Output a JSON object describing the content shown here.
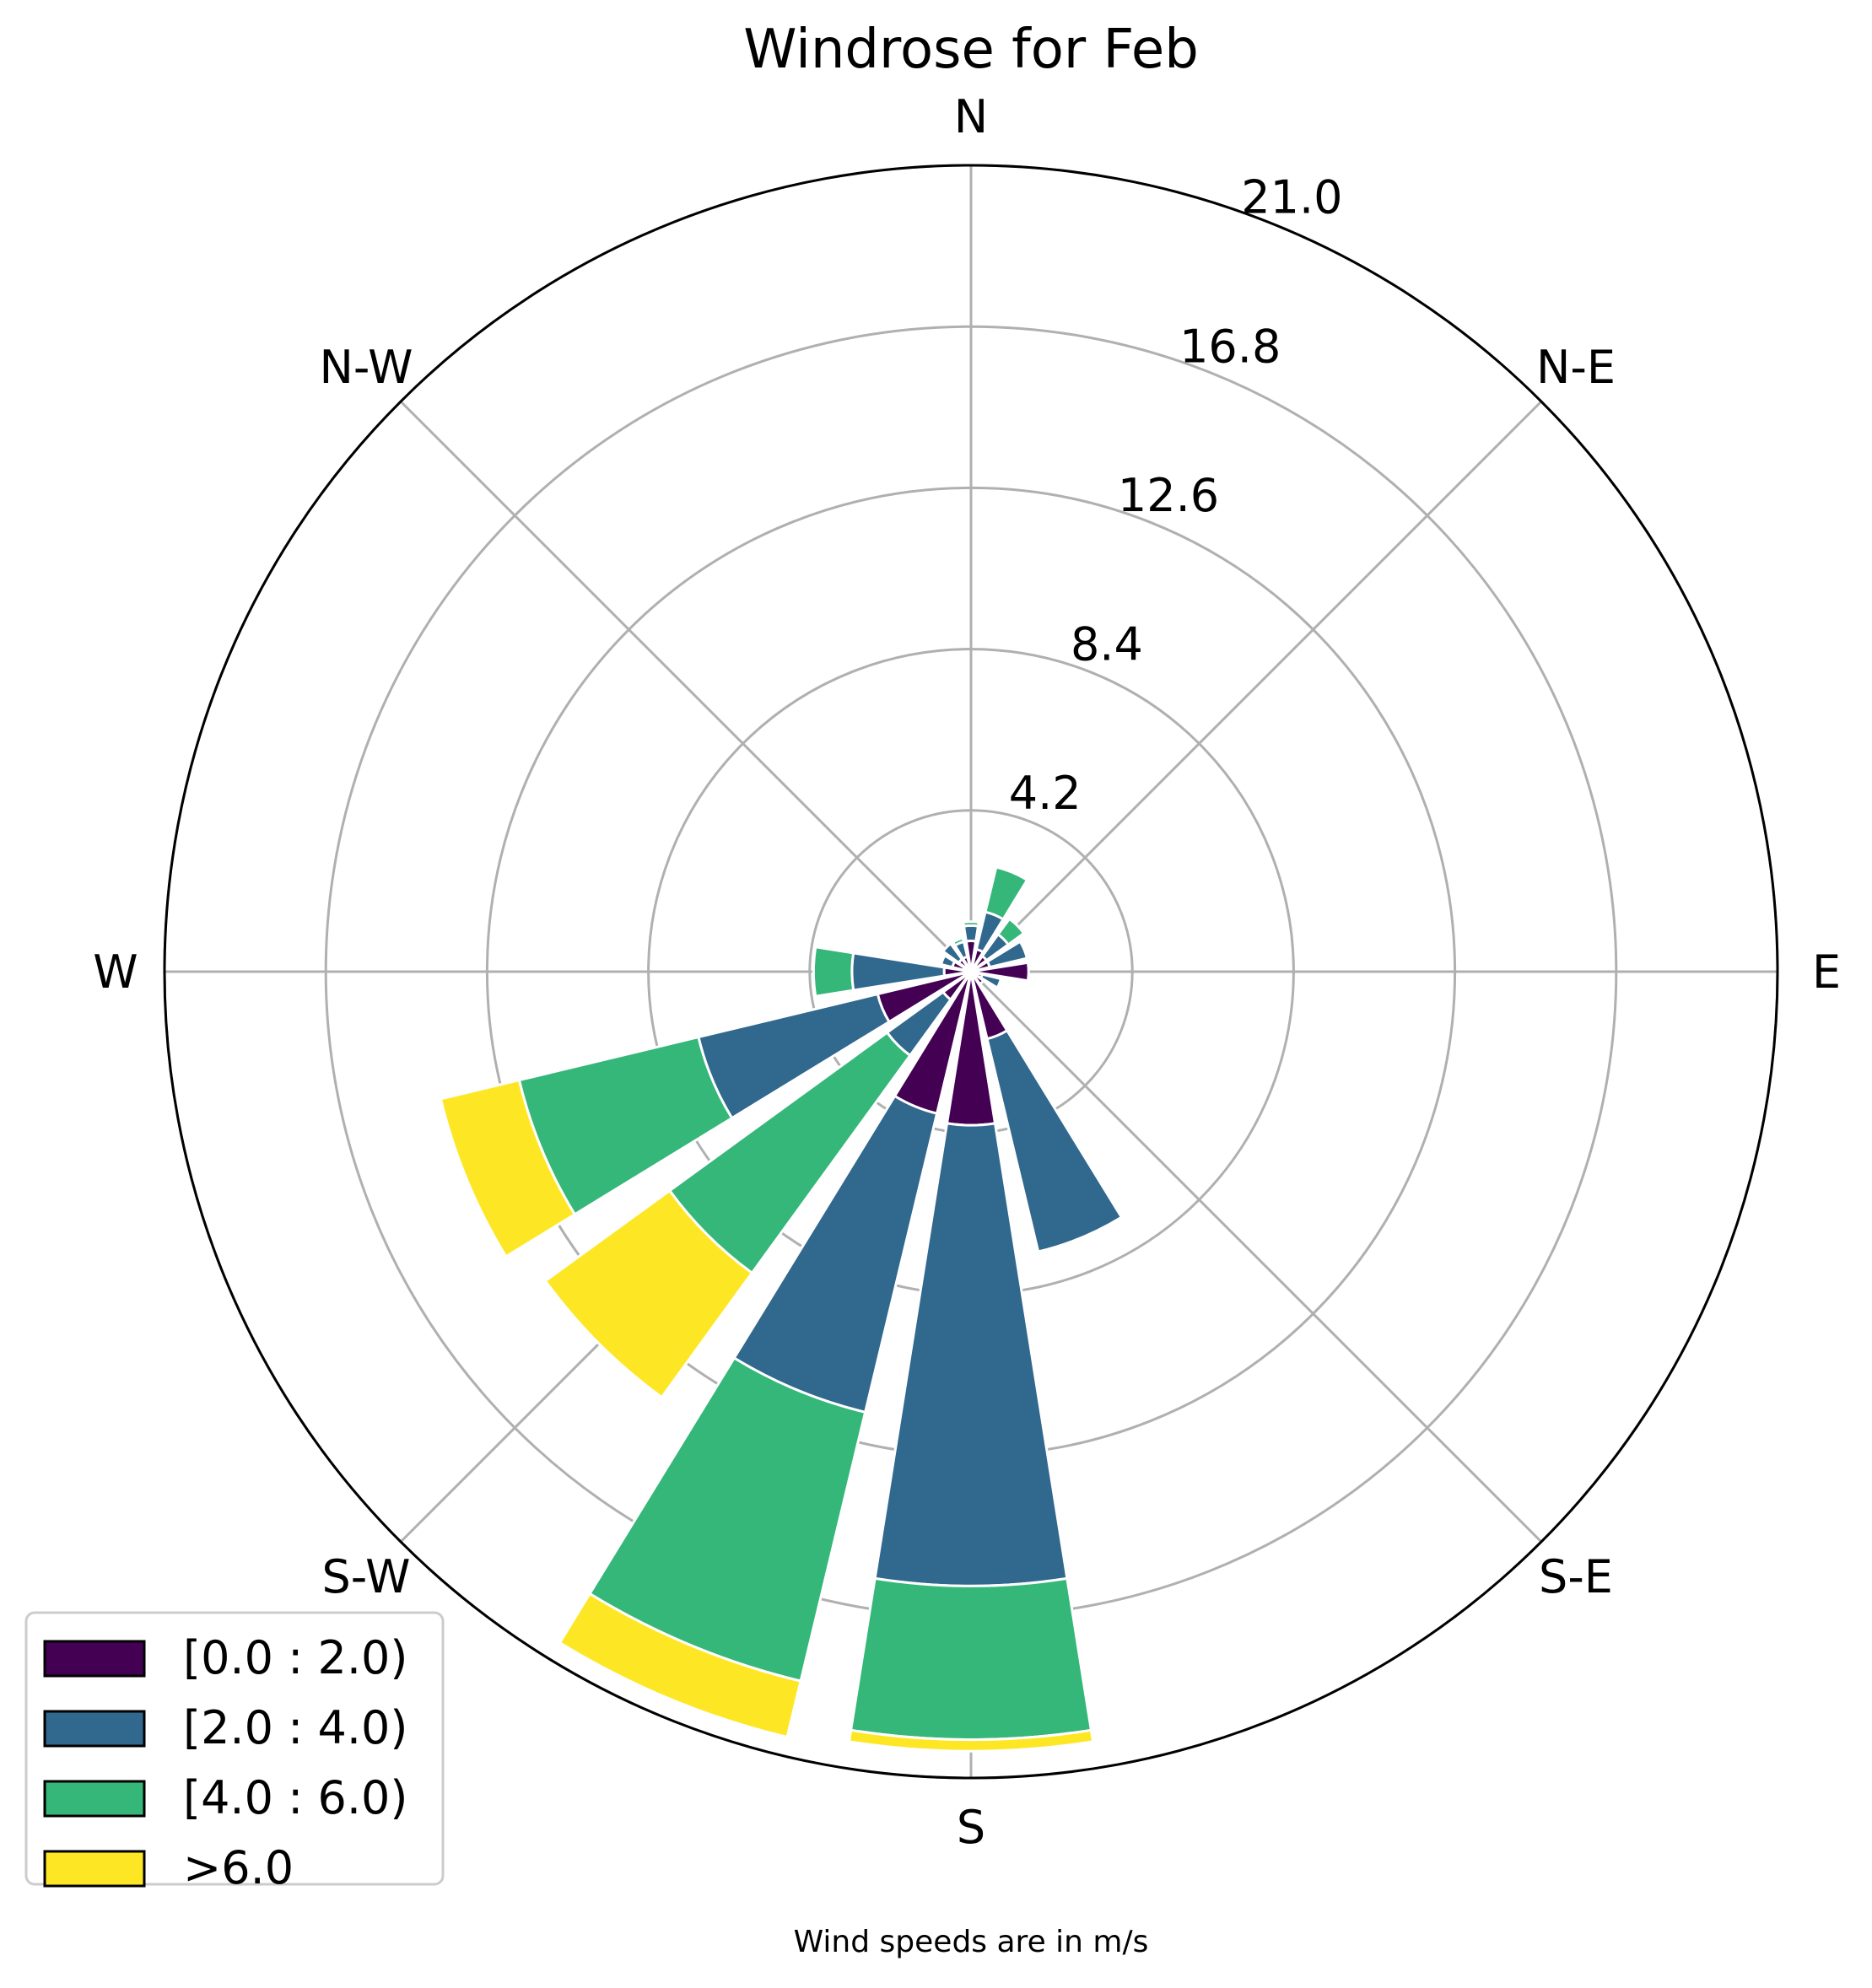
{
  "chart_data": {
    "type": "windrose",
    "title": "Windrose for Feb",
    "footer": "Wind speeds are in m/s",
    "directions": [
      "N",
      "NNE",
      "NE",
      "ENE",
      "E",
      "ESE",
      "SE",
      "SSE",
      "S",
      "SSW",
      "SW",
      "WSW",
      "W",
      "WNW",
      "NW",
      "NNW"
    ],
    "compass_labels": [
      "N",
      "N-E",
      "E",
      "S-E",
      "S",
      "S-W",
      "W",
      "N-W"
    ],
    "radial_ticks": [
      "4.2",
      "8.4",
      "12.6",
      "16.8",
      "21.0"
    ],
    "rmax": 21.0,
    "legend_position": "lower-left",
    "series": [
      {
        "name": "[0.0 : 2.0)",
        "color": "#440154",
        "values": [
          0.8,
          0.6,
          0.5,
          0.5,
          1.5,
          0.3,
          0.4,
          1.8,
          4.0,
          3.8,
          0.9,
          2.5,
          0.7,
          0.5,
          0.4,
          0.4
        ]
      },
      {
        "name": "[2.0 : 4.0)",
        "color": "#31688e",
        "values": [
          0.4,
          1.0,
          0.7,
          1.0,
          0.0,
          0.5,
          0.0,
          5.7,
          12.0,
          8.0,
          1.8,
          4.8,
          2.4,
          0.3,
          0.5,
          0.4
        ]
      },
      {
        "name": "[4.0 : 6.0)",
        "color": "#35b779",
        "values": [
          0.1,
          1.2,
          0.5,
          0.0,
          0.0,
          0.0,
          0.0,
          0.0,
          4.0,
          7.2,
          7.0,
          4.8,
          1.0,
          0.0,
          0.0,
          0.1
        ]
      },
      {
        "name": ">6.0",
        "color": "#fde725",
        "values": [
          0.0,
          0.0,
          0.0,
          0.0,
          0.0,
          0.0,
          0.0,
          0.0,
          0.3,
          1.5,
          4.0,
          2.1,
          0.0,
          0.0,
          0.0,
          0.0
        ]
      }
    ]
  }
}
